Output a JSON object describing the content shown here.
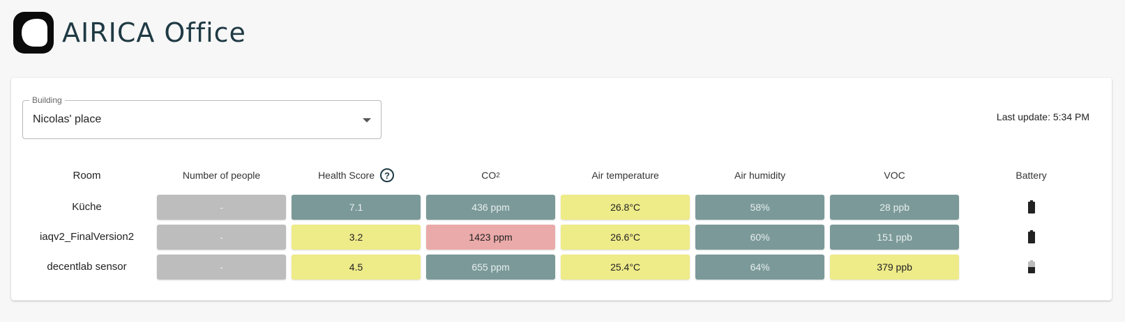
{
  "header": {
    "title": "AIRICA Office",
    "logo_icon": "airica-logo-icon"
  },
  "building_select": {
    "legend": "Building",
    "value": "Nicolas' place"
  },
  "last_update": "Last update: 5:34 PM",
  "colors": {
    "gray": "#bdbdbd",
    "teal": "#7b9999",
    "yellow": "#eeeb89",
    "red": "#eaaaa9"
  },
  "table": {
    "columns": {
      "room": "Room",
      "people": "Number of people",
      "health": "Health Score",
      "co2": "CO",
      "co2_sub": "2",
      "temp": "Air temperature",
      "humidity": "Air humidity",
      "voc": "VOC",
      "battery": "Battery"
    },
    "rows": [
      {
        "room": "Küche",
        "people": {
          "text": "-",
          "status": "gray"
        },
        "health": {
          "text": "7.1",
          "status": "teal"
        },
        "co2": {
          "text": "436 ppm",
          "status": "teal"
        },
        "temp": {
          "text": "26.8°C",
          "status": "yellow"
        },
        "humidity": {
          "text": "58%",
          "status": "teal"
        },
        "voc": {
          "text": "28 ppb",
          "status": "teal"
        },
        "battery": "full"
      },
      {
        "room": "iaqv2_FinalVersion2",
        "people": {
          "text": "-",
          "status": "gray"
        },
        "health": {
          "text": "3.2",
          "status": "yellow"
        },
        "co2": {
          "text": "1423 ppm",
          "status": "red"
        },
        "temp": {
          "text": "26.6°C",
          "status": "yellow"
        },
        "humidity": {
          "text": "60%",
          "status": "teal"
        },
        "voc": {
          "text": "151 ppb",
          "status": "teal"
        },
        "battery": "full"
      },
      {
        "room": "decentlab sensor",
        "people": {
          "text": "-",
          "status": "gray"
        },
        "health": {
          "text": "4.5",
          "status": "yellow"
        },
        "co2": {
          "text": "655 ppm",
          "status": "teal"
        },
        "temp": {
          "text": "25.4°C",
          "status": "yellow"
        },
        "humidity": {
          "text": "64%",
          "status": "teal"
        },
        "voc": {
          "text": "379 ppb",
          "status": "yellow"
        },
        "battery": "half"
      }
    ]
  }
}
